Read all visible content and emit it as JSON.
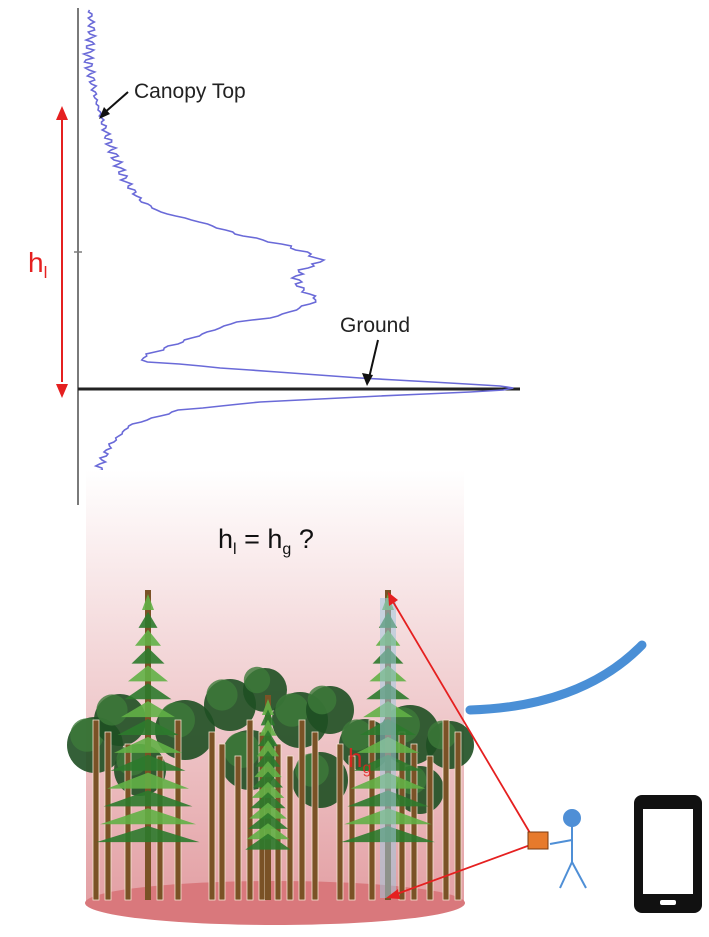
{
  "labels": {
    "canopy_top": "Canopy Top",
    "ground": "Ground",
    "lidar_height_symbol": "h",
    "lidar_height_subscript": "l",
    "ground_height_symbol": "h",
    "ground_height_subscript": "g",
    "equation": {
      "lhs_symbol": "h",
      "lhs_subscript": "l",
      "operator": " = ",
      "rhs_symbol": "h",
      "rhs_subscript": "g",
      "suffix": " ?"
    }
  },
  "colors": {
    "waveform": "#6a6ad8",
    "height_arrow": "#e52020",
    "axis": "#7a7a7a",
    "ground_line": "#222222",
    "plot_gradient_top": "#ffffff",
    "plot_gradient_bottom": "#e3a0a4",
    "plot_base": "#d9787c",
    "conifer_foliage": "#2c7a2c",
    "conifer_highlight": "#62b046",
    "deciduous_foliage": "#1e4f22",
    "trunk": "#7a5226",
    "signal_arc": "#4a8fd6",
    "instrument": "#e77a2c",
    "person": "#4f8fd6",
    "phone": "#111111"
  },
  "icons": {
    "person": "person-stick-figure-icon",
    "instrument": "hypsometer-icon",
    "phone": "smartphone-icon"
  }
}
